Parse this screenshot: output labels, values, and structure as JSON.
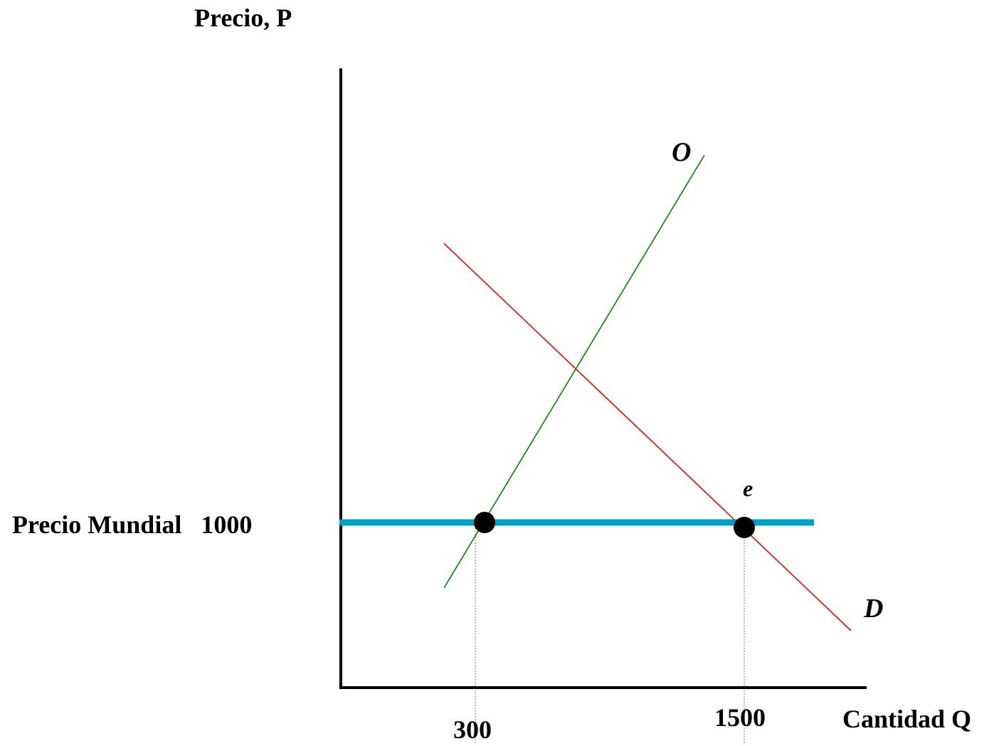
{
  "labels": {
    "y_axis": "Precio,  P",
    "x_axis": "Cantidad Q",
    "world_price": "Precio Mundial   1000",
    "q_supply": "300",
    "q_demand": "1500",
    "supply_curve": "O",
    "demand_curve": "D",
    "point_e": "e"
  },
  "colors": {
    "axes": "#000000",
    "supply": "#008000",
    "demand": "#ff0000",
    "world_price_line": "#00a0c6",
    "points": "#000000",
    "guides": "#888888"
  }
}
